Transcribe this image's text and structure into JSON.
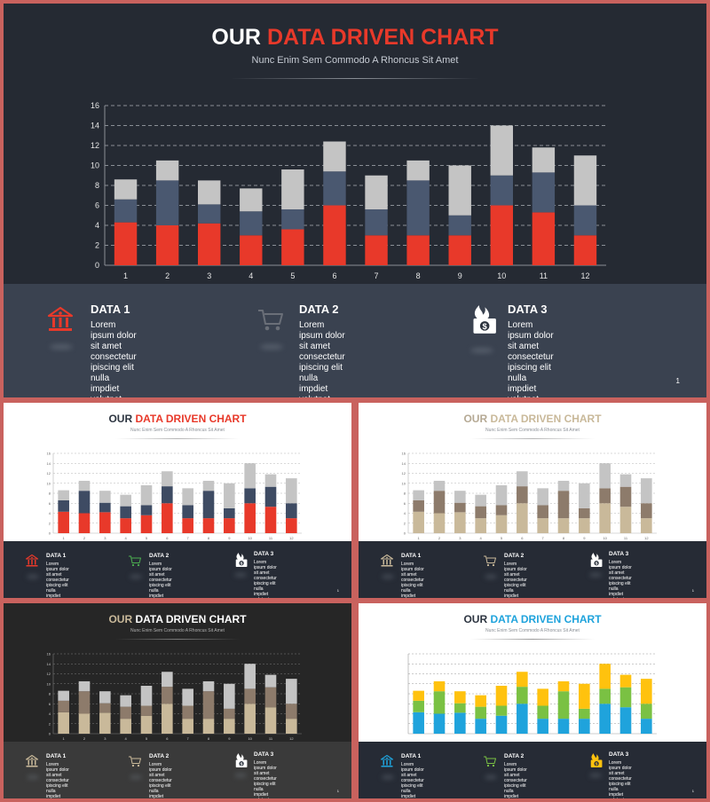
{
  "title": {
    "prefix": "OUR",
    "highlight": "DATA DRIVEN CHART"
  },
  "subtitle": "Nunc Enim Sem Commodo A Rhoncus Sit Amet",
  "info": [
    {
      "label": "DATA 1",
      "icon": "bank-icon",
      "text": "Lorem ipsum dolor sit amet\nconsectetur ipiscing elit nulla\nimpdiet volutpat"
    },
    {
      "label": "DATA 2",
      "icon": "shopping-cart-icon",
      "text": "Lorem ipsum dolor sit amet\nconsectetur ipiscing elit nulla\nimpdiet volutpat"
    },
    {
      "label": "DATA 3",
      "icon": "burning-money-icon",
      "text": "Lorem ipsum dolor sit amet\nconsectetur ipiscing elit nulla\nimpdiet volutpat"
    }
  ],
  "page_number": "1",
  "themes": [
    {
      "top_bg": "#252a33",
      "bottom_bg": "#3a4250",
      "prefix_color": "#ffffff",
      "highlight_color": "#e8392a",
      "subtitle_color": "#c7ccd4",
      "tick_color": "#e6e6e6",
      "grid_color": "#8a8f96",
      "text_color": "#ffffff",
      "series_colors": [
        "#e8392a",
        "#4a5870",
        "#c4c4c4"
      ],
      "icon_colors": [
        "#e8392a",
        "#6a6f78",
        "#ffffff"
      ]
    },
    {
      "top_bg": "#ffffff",
      "bottom_bg": "#262b35",
      "prefix_color": "#2d3541",
      "highlight_color": "#e8392a",
      "subtitle_color": "#8a8f96",
      "tick_color": "#666666",
      "grid_color": "#b5b5b5",
      "text_color": "#ffffff",
      "series_colors": [
        "#e8392a",
        "#3e4b63",
        "#c4c4c4"
      ],
      "icon_colors": [
        "#e8392a",
        "#4caf50",
        "#ffffff"
      ]
    },
    {
      "top_bg": "#ffffff",
      "bottom_bg": "#262b35",
      "prefix_color": "#b5a994",
      "highlight_color": "#c9b99a",
      "subtitle_color": "#8a8f96",
      "tick_color": "#666666",
      "grid_color": "#b5b5b5",
      "text_color": "#ffffff",
      "series_colors": [
        "#c9b99a",
        "#8d7b6b",
        "#c4c4c4"
      ],
      "icon_colors": [
        "#c9b99a",
        "#c9b99a",
        "#ffffff"
      ]
    },
    {
      "top_bg": "#262626",
      "bottom_bg": "#3a3a3a",
      "prefix_color": "#c9b99a",
      "highlight_color": "#ffffff",
      "subtitle_color": "#b0b0b0",
      "tick_color": "#cfcfcf",
      "grid_color": "#7a7a7a",
      "text_color": "#ffffff",
      "series_colors": [
        "#c9b99a",
        "#8d7b6b",
        "#c4c4c4"
      ],
      "icon_colors": [
        "#c9b99a",
        "#c9b99a",
        "#ffffff"
      ]
    },
    {
      "top_bg": "#ffffff",
      "bottom_bg": "#262b35",
      "prefix_color": "#2d3541",
      "highlight_color": "#1fa3dc",
      "subtitle_color": "#8a8f96",
      "tick_color": "#666666",
      "grid_color": "#9a9a9a",
      "text_color": "#ffffff",
      "series_colors": [
        "#1fa3dc",
        "#7ac143",
        "#ffc20e"
      ],
      "icon_colors": [
        "#1fa3dc",
        "#7ac143",
        "#ffc20e"
      ]
    }
  ],
  "chart_data": {
    "type": "bar",
    "stacked": true,
    "categories": [
      "1",
      "2",
      "3",
      "4",
      "5",
      "6",
      "7",
      "8",
      "9",
      "10",
      "11",
      "12"
    ],
    "series": [
      {
        "values": [
          4.3,
          4.0,
          4.2,
          3.0,
          3.6,
          6.0,
          3.0,
          3.0,
          3.0,
          6.0,
          5.3,
          3.0
        ]
      },
      {
        "values": [
          2.3,
          4.5,
          1.9,
          2.4,
          2.0,
          3.4,
          2.6,
          5.5,
          2.0,
          3.0,
          4.0,
          3.0
        ]
      },
      {
        "values": [
          2.0,
          2.0,
          2.4,
          2.3,
          4.0,
          3.0,
          3.4,
          2.0,
          5.0,
          5.0,
          2.5,
          5.0
        ]
      }
    ],
    "ylim": [
      0,
      16
    ],
    "yticks": [
      0,
      2,
      4,
      6,
      8,
      10,
      12,
      14,
      16
    ],
    "grid": true
  }
}
